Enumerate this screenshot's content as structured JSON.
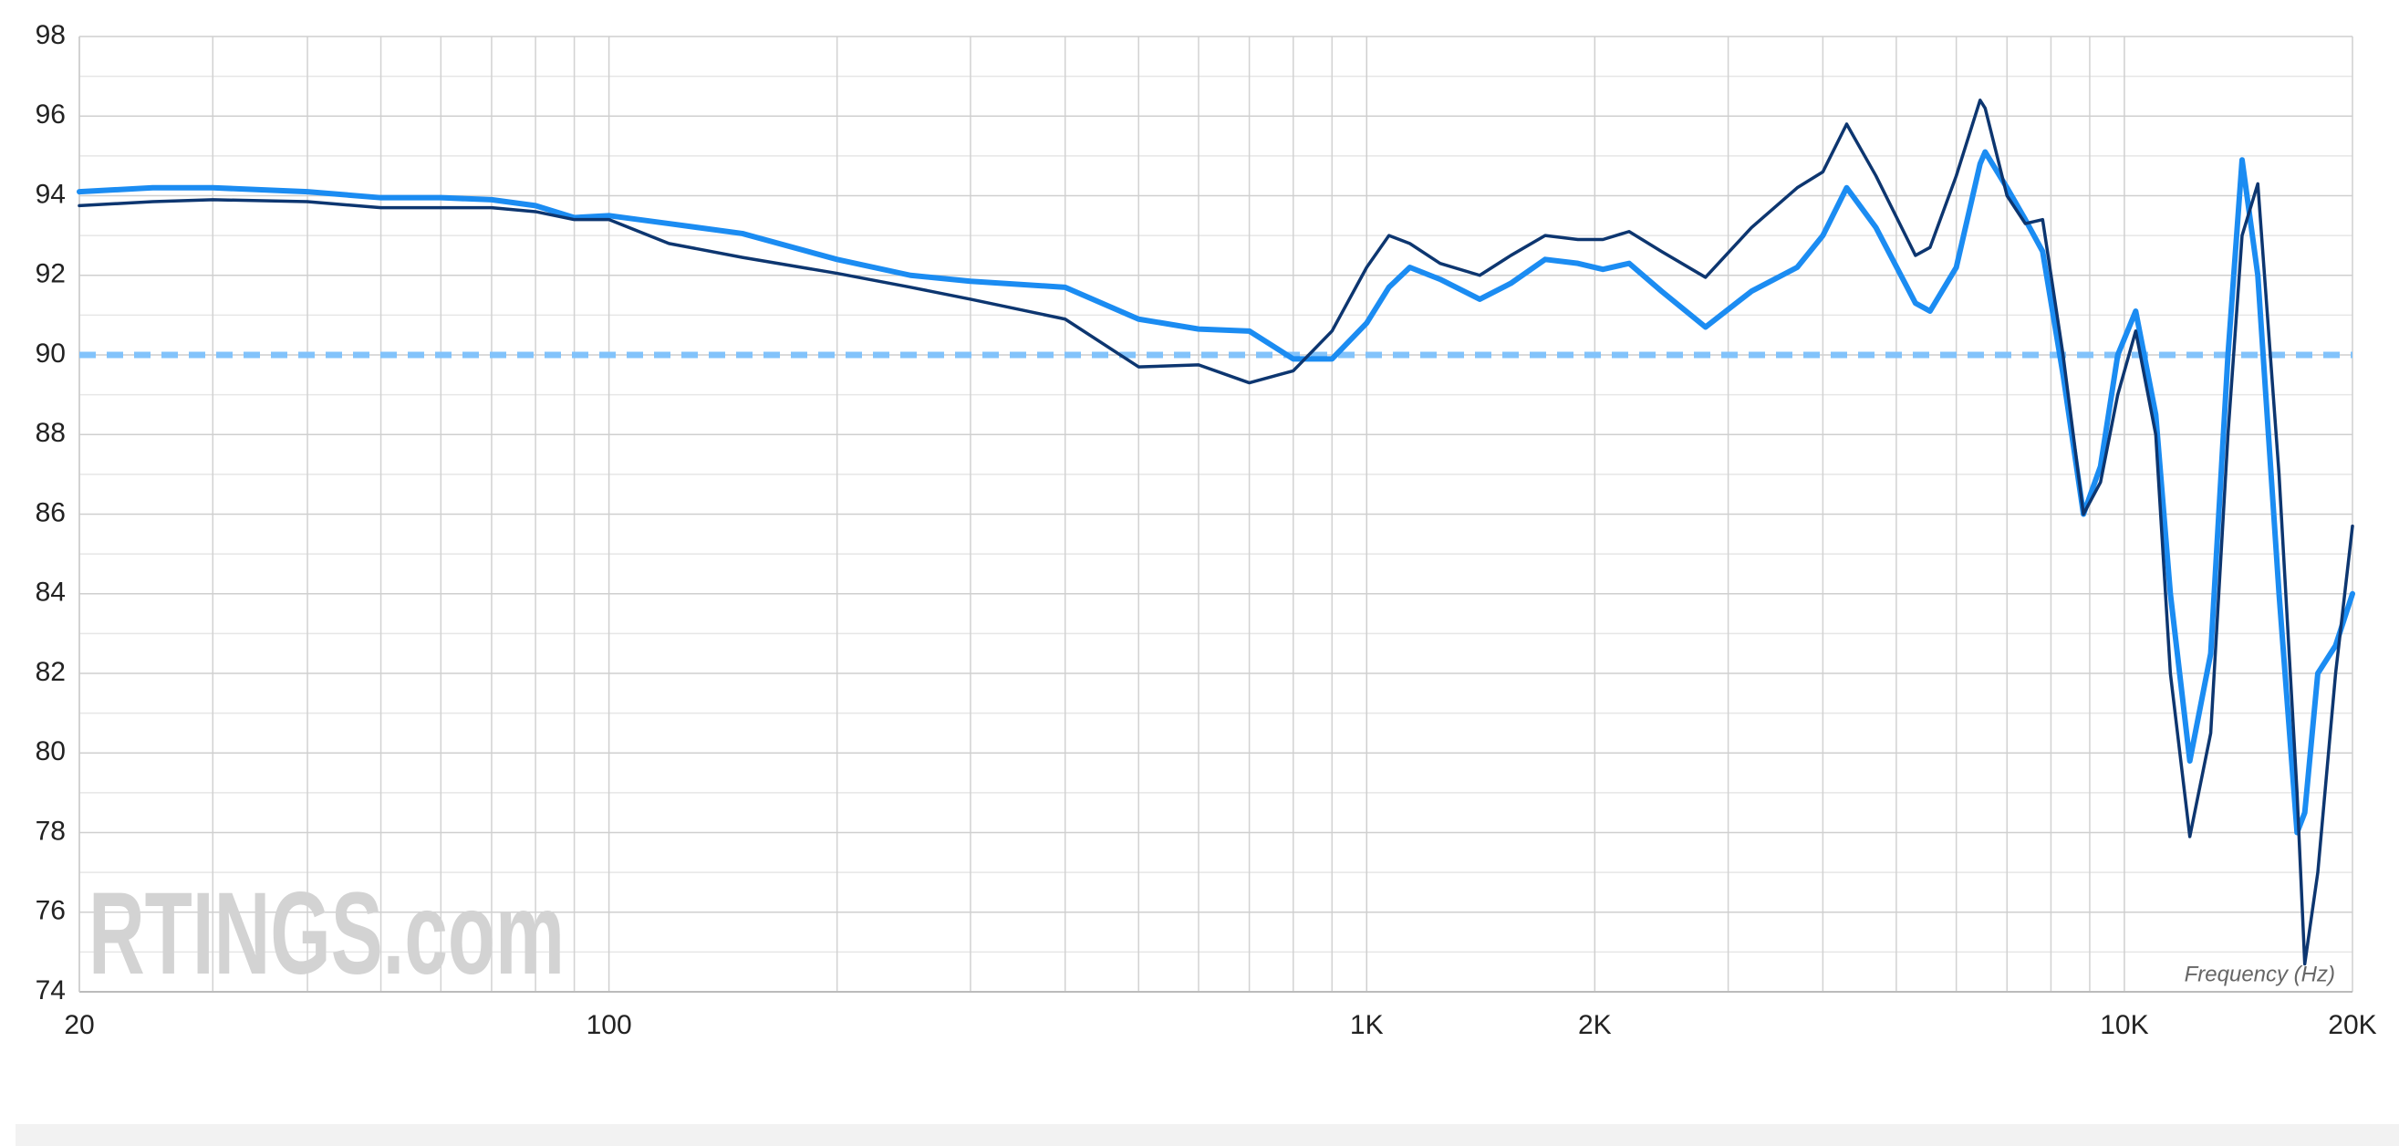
{
  "chart_data": {
    "type": "line",
    "xscale": "log",
    "xlabel": "Frequency (Hz)",
    "watermark": "RTINGS.com",
    "grid": true,
    "xlim": [
      20,
      20000
    ],
    "ylim": [
      74,
      98
    ],
    "xticks": [
      20,
      100,
      {
        "value": 1000,
        "label": "1K"
      },
      {
        "value": 2000,
        "label": "2K"
      },
      {
        "value": 10000,
        "label": "10K"
      },
      {
        "value": 20000,
        "label": "20K"
      }
    ],
    "xgrid": [
      30,
      40,
      50,
      60,
      70,
      80,
      90,
      200,
      300,
      400,
      500,
      600,
      700,
      800,
      900,
      3000,
      4000,
      5000,
      6000,
      7000,
      8000,
      9000
    ],
    "yticks": [
      74,
      76,
      78,
      80,
      82,
      84,
      86,
      88,
      90,
      92,
      94,
      96,
      98
    ],
    "yminor": [
      75,
      77,
      79,
      81,
      83,
      85,
      87,
      89,
      91,
      93,
      95,
      97
    ],
    "hlines": [
      {
        "value": 90,
        "color": "#82c3fb"
      }
    ],
    "x": [
      20,
      25,
      30,
      40,
      50,
      60,
      70,
      80,
      90,
      100,
      120,
      150,
      200,
      250,
      300,
      400,
      500,
      600,
      700,
      800,
      900,
      1000,
      1070,
      1140,
      1250,
      1410,
      1550,
      1720,
      1900,
      2050,
      2220,
      2450,
      2800,
      3220,
      3700,
      4000,
      4300,
      4700,
      5300,
      5540,
      6000,
      6450,
      6550,
      7000,
      7400,
      7800,
      8300,
      8830,
      9300,
      9800,
      10350,
      11000,
      11500,
      12200,
      13000,
      13700,
      14300,
      15000,
      16000,
      16900,
      17300,
      18000,
      19000,
      20000
    ],
    "series": [
      {
        "color": "#1b8cf2",
        "width": 6,
        "values": [
          94.1,
          94.2,
          94.2,
          94.1,
          93.95,
          93.95,
          93.9,
          93.75,
          93.45,
          93.5,
          93.3,
          93.05,
          92.4,
          92.0,
          91.85,
          91.7,
          90.9,
          90.65,
          90.6,
          89.9,
          89.9,
          90.8,
          91.7,
          92.2,
          91.9,
          91.4,
          91.8,
          92.4,
          92.3,
          92.15,
          92.3,
          91.6,
          90.7,
          91.6,
          92.2,
          93.0,
          94.2,
          93.2,
          91.3,
          91.1,
          92.2,
          94.8,
          95.1,
          94.2,
          93.4,
          92.6,
          89.5,
          86.0,
          87.2,
          90.0,
          91.1,
          88.5,
          84.0,
          79.8,
          82.5,
          90.0,
          94.9,
          92.0,
          84.0,
          78.0,
          78.5,
          82.0,
          82.7,
          84.0
        ]
      },
      {
        "color": "#0d3670",
        "width": 3.5,
        "values": [
          93.75,
          93.85,
          93.9,
          93.85,
          93.7,
          93.7,
          93.7,
          93.6,
          93.4,
          93.4,
          92.8,
          92.45,
          92.05,
          91.7,
          91.4,
          90.9,
          89.7,
          89.75,
          89.3,
          89.6,
          90.6,
          92.2,
          93.0,
          92.8,
          92.3,
          92.0,
          92.5,
          93.0,
          92.9,
          92.9,
          93.1,
          92.6,
          91.95,
          93.2,
          94.2,
          94.6,
          95.8,
          94.5,
          92.5,
          92.7,
          94.5,
          96.4,
          96.2,
          94.0,
          93.3,
          93.4,
          90.0,
          86.0,
          86.8,
          89.0,
          90.6,
          88.0,
          82.0,
          77.9,
          80.5,
          88.0,
          93.0,
          94.3,
          87.0,
          79.0,
          74.7,
          77.0,
          82.0,
          85.7
        ]
      }
    ]
  }
}
